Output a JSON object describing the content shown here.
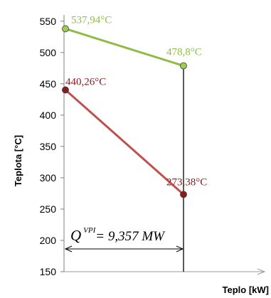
{
  "chart_data": {
    "type": "line",
    "ylabel": "Teplota [°C]",
    "xlabel": "Teplo [kW]",
    "ylim": [
      150,
      560
    ],
    "yticks": [
      150,
      200,
      250,
      300,
      350,
      400,
      450,
      500,
      550
    ],
    "x": [
      0,
      9357
    ],
    "grid": false,
    "series": [
      {
        "values": [
          537.94,
          478.8
        ],
        "labels": [
          "537,94°C",
          "478,8°C"
        ],
        "color": "#8fbc45",
        "marker_fill": "#9acd52"
      },
      {
        "values": [
          440.26,
          273.38
        ],
        "labels": [
          "440,26°C",
          "273,38°C"
        ],
        "color": "#c0504d",
        "marker_fill": "#8b1a1a",
        "label_color": "#8b1a1a"
      }
    ],
    "annotation": {
      "symbol": "Q",
      "superscript": "VPI",
      "value_text": "= 9,357 MW"
    }
  }
}
